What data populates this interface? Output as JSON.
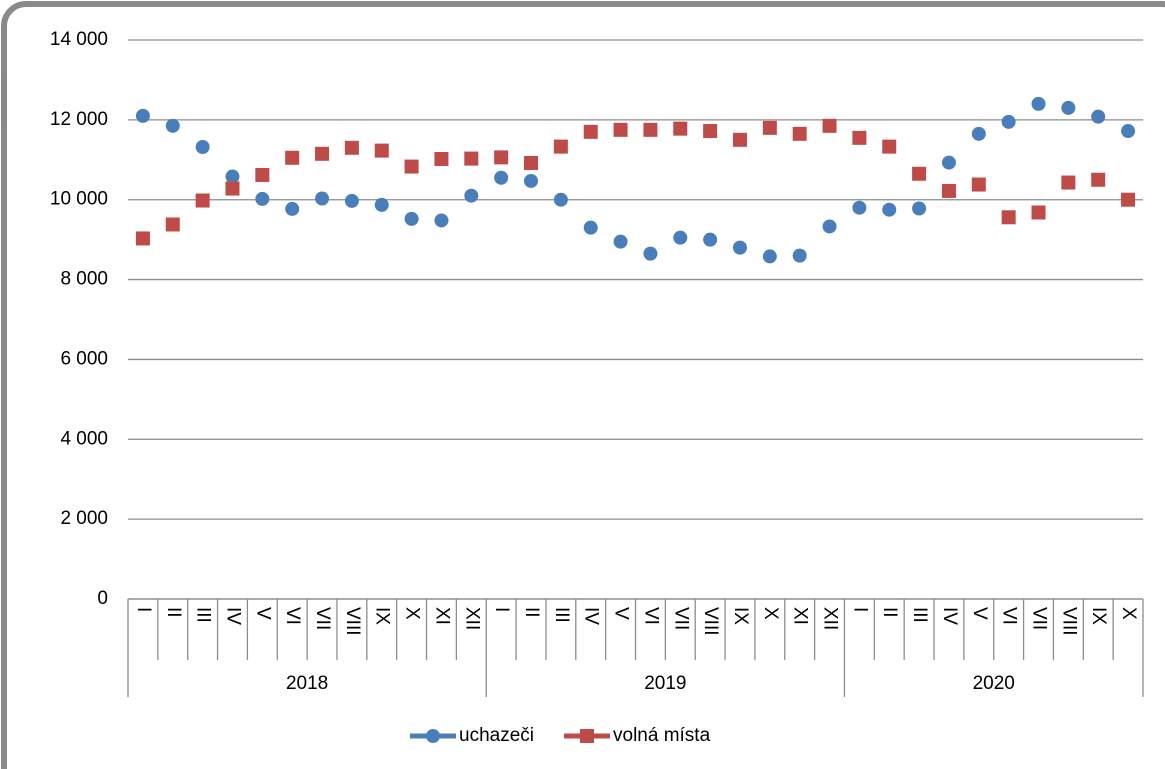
{
  "chart_data": {
    "type": "line",
    "groups": [
      {
        "label": "2018",
        "categories": [
          "I",
          "II",
          "III",
          "IV",
          "V",
          "VI",
          "VII",
          "VIII",
          "IX",
          "X",
          "XI",
          "XII"
        ]
      },
      {
        "label": "2019",
        "categories": [
          "I",
          "II",
          "III",
          "IV",
          "V",
          "VI",
          "VII",
          "VIII",
          "IX",
          "X",
          "XI",
          "XII"
        ]
      },
      {
        "label": "2020",
        "categories": [
          "I",
          "II",
          "III",
          "IV",
          "V",
          "VI",
          "VII",
          "VIII",
          "IX",
          "X"
        ]
      }
    ],
    "series": [
      {
        "name": "uchazeči",
        "color": "#4a7ebb",
        "marker": "circle",
        "values": [
          12100,
          11850,
          11320,
          10580,
          10020,
          9770,
          10030,
          9970,
          9870,
          9520,
          9480,
          10100,
          10550,
          10470,
          10000,
          9300,
          8950,
          8650,
          9050,
          9000,
          8800,
          8580,
          8600,
          9330,
          9800,
          9750,
          9780,
          10930,
          11650,
          11950,
          12400,
          12300,
          12080,
          11720
        ]
      },
      {
        "name": "volná místa",
        "color": "#be4b48",
        "marker": "square",
        "values": [
          9030,
          9380,
          9980,
          10280,
          10620,
          11050,
          11150,
          11300,
          11230,
          10830,
          11020,
          11030,
          11060,
          10920,
          11330,
          11700,
          11750,
          11750,
          11780,
          11720,
          11500,
          11800,
          11650,
          11850,
          11550,
          11330,
          10650,
          10220,
          10380,
          9560,
          9680,
          10430,
          10500,
          10000
        ]
      }
    ],
    "ylim": [
      0,
      14000
    ],
    "yticks": [
      0,
      {
        "value": 2000,
        "label": "2 000"
      },
      {
        "value": 4000,
        "label": "4 000"
      },
      {
        "value": 6000,
        "label": "6 000"
      },
      {
        "value": 8000,
        "label": "8 000"
      },
      {
        "value": 10000,
        "label": "10 000"
      },
      {
        "value": 12000,
        "label": "12 000"
      },
      {
        "value": 14000,
        "label": "14 000"
      }
    ],
    "grid": true,
    "legend": "bottom"
  }
}
